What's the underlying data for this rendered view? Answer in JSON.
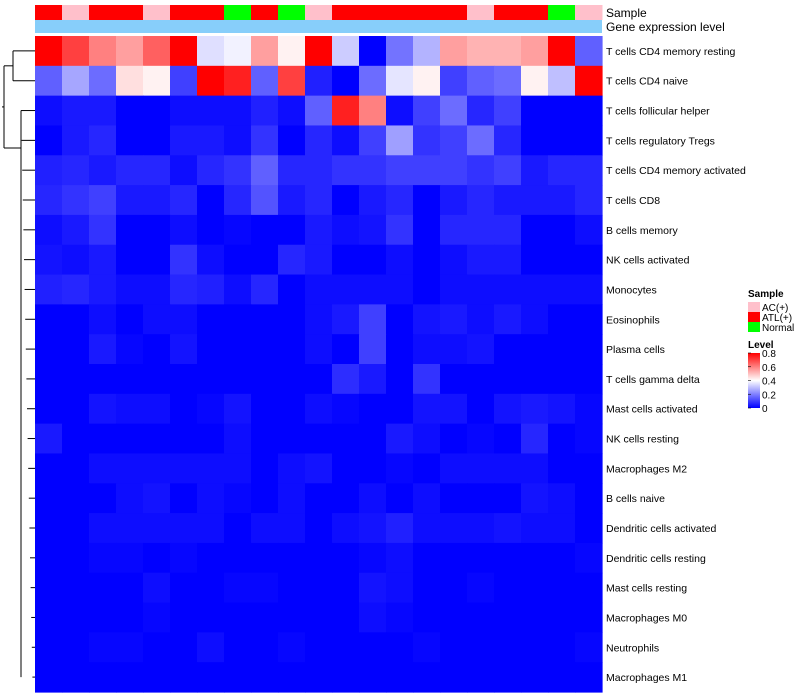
{
  "chart_data": {
    "type": "heatmap",
    "annotation_rows": [
      "Sample",
      "Gene expression level"
    ],
    "sample_groups": [
      "ATL(+)",
      "AC(+)",
      "ATL(+)",
      "ATL(+)",
      "AC(+)",
      "ATL(+)",
      "ATL(+)",
      "Normal",
      "ATL(+)",
      "Normal",
      "AC(+)",
      "ATL(+)",
      "ATL(+)",
      "ATL(+)",
      "ATL(+)",
      "ATL(+)",
      "AC(+)",
      "ATL(+)",
      "ATL(+)",
      "Normal",
      "AC(+)"
    ],
    "row_labels": [
      "T cells CD4 memory resting",
      "T cells CD4 naive",
      "T cells follicular helper",
      "T cells regulatory  Tregs",
      "T cells CD4 memory activated",
      "T cells CD8",
      "B cells memory",
      "NK cells activated",
      "Monocytes",
      "Eosinophils",
      "Plasma cells",
      "T cells gamma delta",
      "Mast cells activated",
      "NK cells resting",
      "Macrophages M2",
      "B cells naive",
      "Dendritic cells activated",
      "Dendritic cells resting",
      "Mast cells resting",
      "Macrophages M0",
      "Neutrophils",
      "Macrophages M1"
    ],
    "values": [
      [
        0.8,
        0.7,
        0.6,
        0.55,
        0.65,
        0.8,
        0.35,
        0.38,
        0.55,
        0.42,
        0.8,
        0.32,
        0.0,
        0.18,
        0.28,
        0.55,
        0.52,
        0.52,
        0.55,
        0.8,
        0.15
      ],
      [
        0.15,
        0.26,
        0.17,
        0.45,
        0.42,
        0.1,
        0.8,
        0.75,
        0.15,
        0.7,
        0.05,
        0.0,
        0.17,
        0.36,
        0.42,
        0.1,
        0.15,
        0.17,
        0.42,
        0.3,
        0.8
      ],
      [
        0.02,
        0.04,
        0.04,
        0.0,
        0.0,
        0.02,
        0.02,
        0.02,
        0.05,
        0.02,
        0.15,
        0.75,
        0.6,
        0.02,
        0.1,
        0.17,
        0.06,
        0.1,
        0.0,
        0.0,
        0.0
      ],
      [
        0.0,
        0.04,
        0.06,
        0.0,
        0.0,
        0.04,
        0.04,
        0.02,
        0.08,
        0.0,
        0.06,
        0.02,
        0.1,
        0.25,
        0.08,
        0.1,
        0.17,
        0.06,
        0.0,
        0.0,
        0.0
      ],
      [
        0.05,
        0.06,
        0.04,
        0.06,
        0.06,
        0.02,
        0.06,
        0.08,
        0.15,
        0.06,
        0.06,
        0.08,
        0.08,
        0.1,
        0.1,
        0.1,
        0.08,
        0.1,
        0.04,
        0.06,
        0.06
      ],
      [
        0.06,
        0.08,
        0.1,
        0.04,
        0.04,
        0.06,
        0.0,
        0.06,
        0.13,
        0.04,
        0.06,
        0.0,
        0.04,
        0.06,
        0.0,
        0.04,
        0.06,
        0.04,
        0.04,
        0.04,
        0.06
      ],
      [
        0.02,
        0.04,
        0.08,
        0.0,
        0.0,
        0.02,
        0.0,
        0.01,
        0.0,
        0.0,
        0.04,
        0.02,
        0.03,
        0.08,
        0.0,
        0.06,
        0.06,
        0.06,
        0.0,
        0.0,
        0.02
      ],
      [
        0.03,
        0.02,
        0.04,
        0.0,
        0.0,
        0.08,
        0.02,
        0.0,
        0.0,
        0.06,
        0.04,
        0.0,
        0.0,
        0.02,
        0.0,
        0.02,
        0.04,
        0.04,
        0.0,
        0.0,
        0.0
      ],
      [
        0.05,
        0.06,
        0.04,
        0.02,
        0.02,
        0.06,
        0.05,
        0.02,
        0.06,
        0.0,
        0.02,
        0.02,
        0.02,
        0.02,
        0.0,
        0.02,
        0.02,
        0.02,
        0.02,
        0.02,
        0.02
      ],
      [
        0.0,
        0.0,
        0.02,
        0.0,
        0.02,
        0.02,
        0.0,
        0.0,
        0.0,
        0.0,
        0.02,
        0.04,
        0.1,
        0.0,
        0.03,
        0.04,
        0.02,
        0.04,
        0.02,
        0.0,
        0.0
      ],
      [
        0.0,
        0.0,
        0.04,
        0.01,
        0.0,
        0.03,
        0.0,
        0.0,
        0.0,
        0.0,
        0.02,
        0.0,
        0.1,
        0.0,
        0.02,
        0.02,
        0.03,
        0.0,
        0.0,
        0.0,
        0.0
      ],
      [
        0.0,
        0.0,
        0.0,
        0.0,
        0.0,
        0.0,
        0.0,
        0.0,
        0.0,
        0.0,
        0.0,
        0.07,
        0.04,
        0.0,
        0.08,
        0.0,
        0.0,
        0.0,
        0.0,
        0.0,
        0.0
      ],
      [
        0.0,
        0.0,
        0.03,
        0.02,
        0.02,
        0.0,
        0.01,
        0.03,
        0.0,
        0.0,
        0.02,
        0.01,
        0.0,
        0.0,
        0.03,
        0.03,
        0.0,
        0.03,
        0.04,
        0.03,
        0.01
      ],
      [
        0.04,
        0.0,
        0.0,
        0.0,
        0.0,
        0.0,
        0.0,
        0.02,
        0.0,
        0.0,
        0.0,
        0.0,
        0.0,
        0.04,
        0.02,
        0.0,
        0.01,
        0.0,
        0.06,
        0.0,
        0.01
      ],
      [
        0.0,
        0.0,
        0.02,
        0.02,
        0.02,
        0.02,
        0.02,
        0.02,
        0.0,
        0.02,
        0.03,
        0.0,
        0.0,
        0.01,
        0.0,
        0.02,
        0.02,
        0.02,
        0.02,
        0.0,
        0.0
      ],
      [
        0.0,
        0.0,
        0.0,
        0.02,
        0.03,
        0.0,
        0.02,
        0.01,
        0.0,
        0.02,
        0.0,
        0.0,
        0.02,
        0.0,
        0.02,
        0.0,
        0.0,
        0.0,
        0.03,
        0.02,
        0.0
      ],
      [
        0.0,
        0.0,
        0.02,
        0.02,
        0.02,
        0.02,
        0.02,
        0.0,
        0.02,
        0.02,
        0.0,
        0.02,
        0.03,
        0.05,
        0.02,
        0.02,
        0.02,
        0.03,
        0.02,
        0.02,
        0.0
      ],
      [
        0.0,
        0.0,
        0.01,
        0.01,
        0.0,
        0.01,
        0.0,
        0.0,
        0.0,
        0.0,
        0.0,
        0.0,
        0.01,
        0.02,
        0.0,
        0.0,
        0.0,
        0.0,
        0.0,
        0.0,
        0.01
      ],
      [
        0.0,
        0.0,
        0.0,
        0.0,
        0.02,
        0.0,
        0.0,
        0.01,
        0.01,
        0.0,
        0.0,
        0.0,
        0.03,
        0.02,
        0.0,
        0.0,
        0.01,
        0.0,
        0.0,
        0.0,
        0.0
      ],
      [
        0.0,
        0.0,
        0.0,
        0.0,
        0.01,
        0.0,
        0.0,
        0.0,
        0.0,
        0.0,
        0.0,
        0.0,
        0.02,
        0.01,
        0.0,
        0.0,
        0.0,
        0.0,
        0.0,
        0.0,
        0.0
      ],
      [
        0.0,
        0.0,
        0.01,
        0.01,
        0.0,
        0.0,
        0.02,
        0.0,
        0.0,
        0.01,
        0.0,
        0.0,
        0.0,
        0.0,
        0.01,
        0.0,
        0.0,
        0.0,
        0.0,
        0.0,
        0.01
      ],
      [
        0.0,
        0.0,
        0.0,
        0.0,
        0.0,
        0.0,
        0.0,
        0.0,
        0.0,
        0.0,
        0.0,
        0.0,
        0.0,
        0.0,
        0.0,
        0.0,
        0.0,
        0.0,
        0.0,
        0.0,
        0.0
      ]
    ],
    "color_scale": {
      "min": 0,
      "max": 0.8,
      "stops": [
        {
          "value": 0,
          "color": "#0000ff"
        },
        {
          "value": 0.4,
          "color": "#ffffff"
        },
        {
          "value": 0.8,
          "color": "#ff0000"
        }
      ]
    },
    "legends": {
      "sample": {
        "title": "Sample",
        "entries": [
          {
            "label": "AC(+)",
            "color": "#ffc0cb"
          },
          {
            "label": "ATL(+)",
            "color": "#ff0000"
          },
          {
            "label": "Normal",
            "color": "#00ff00"
          }
        ]
      },
      "level": {
        "title": "Level",
        "ticks": [
          0.8,
          0.6,
          0.4,
          0.2,
          0
        ],
        "tick_labels": [
          "0.8",
          "0.6",
          "0.4",
          "0.2",
          "0"
        ]
      }
    },
    "gene_expression_color": "#87cefa"
  }
}
